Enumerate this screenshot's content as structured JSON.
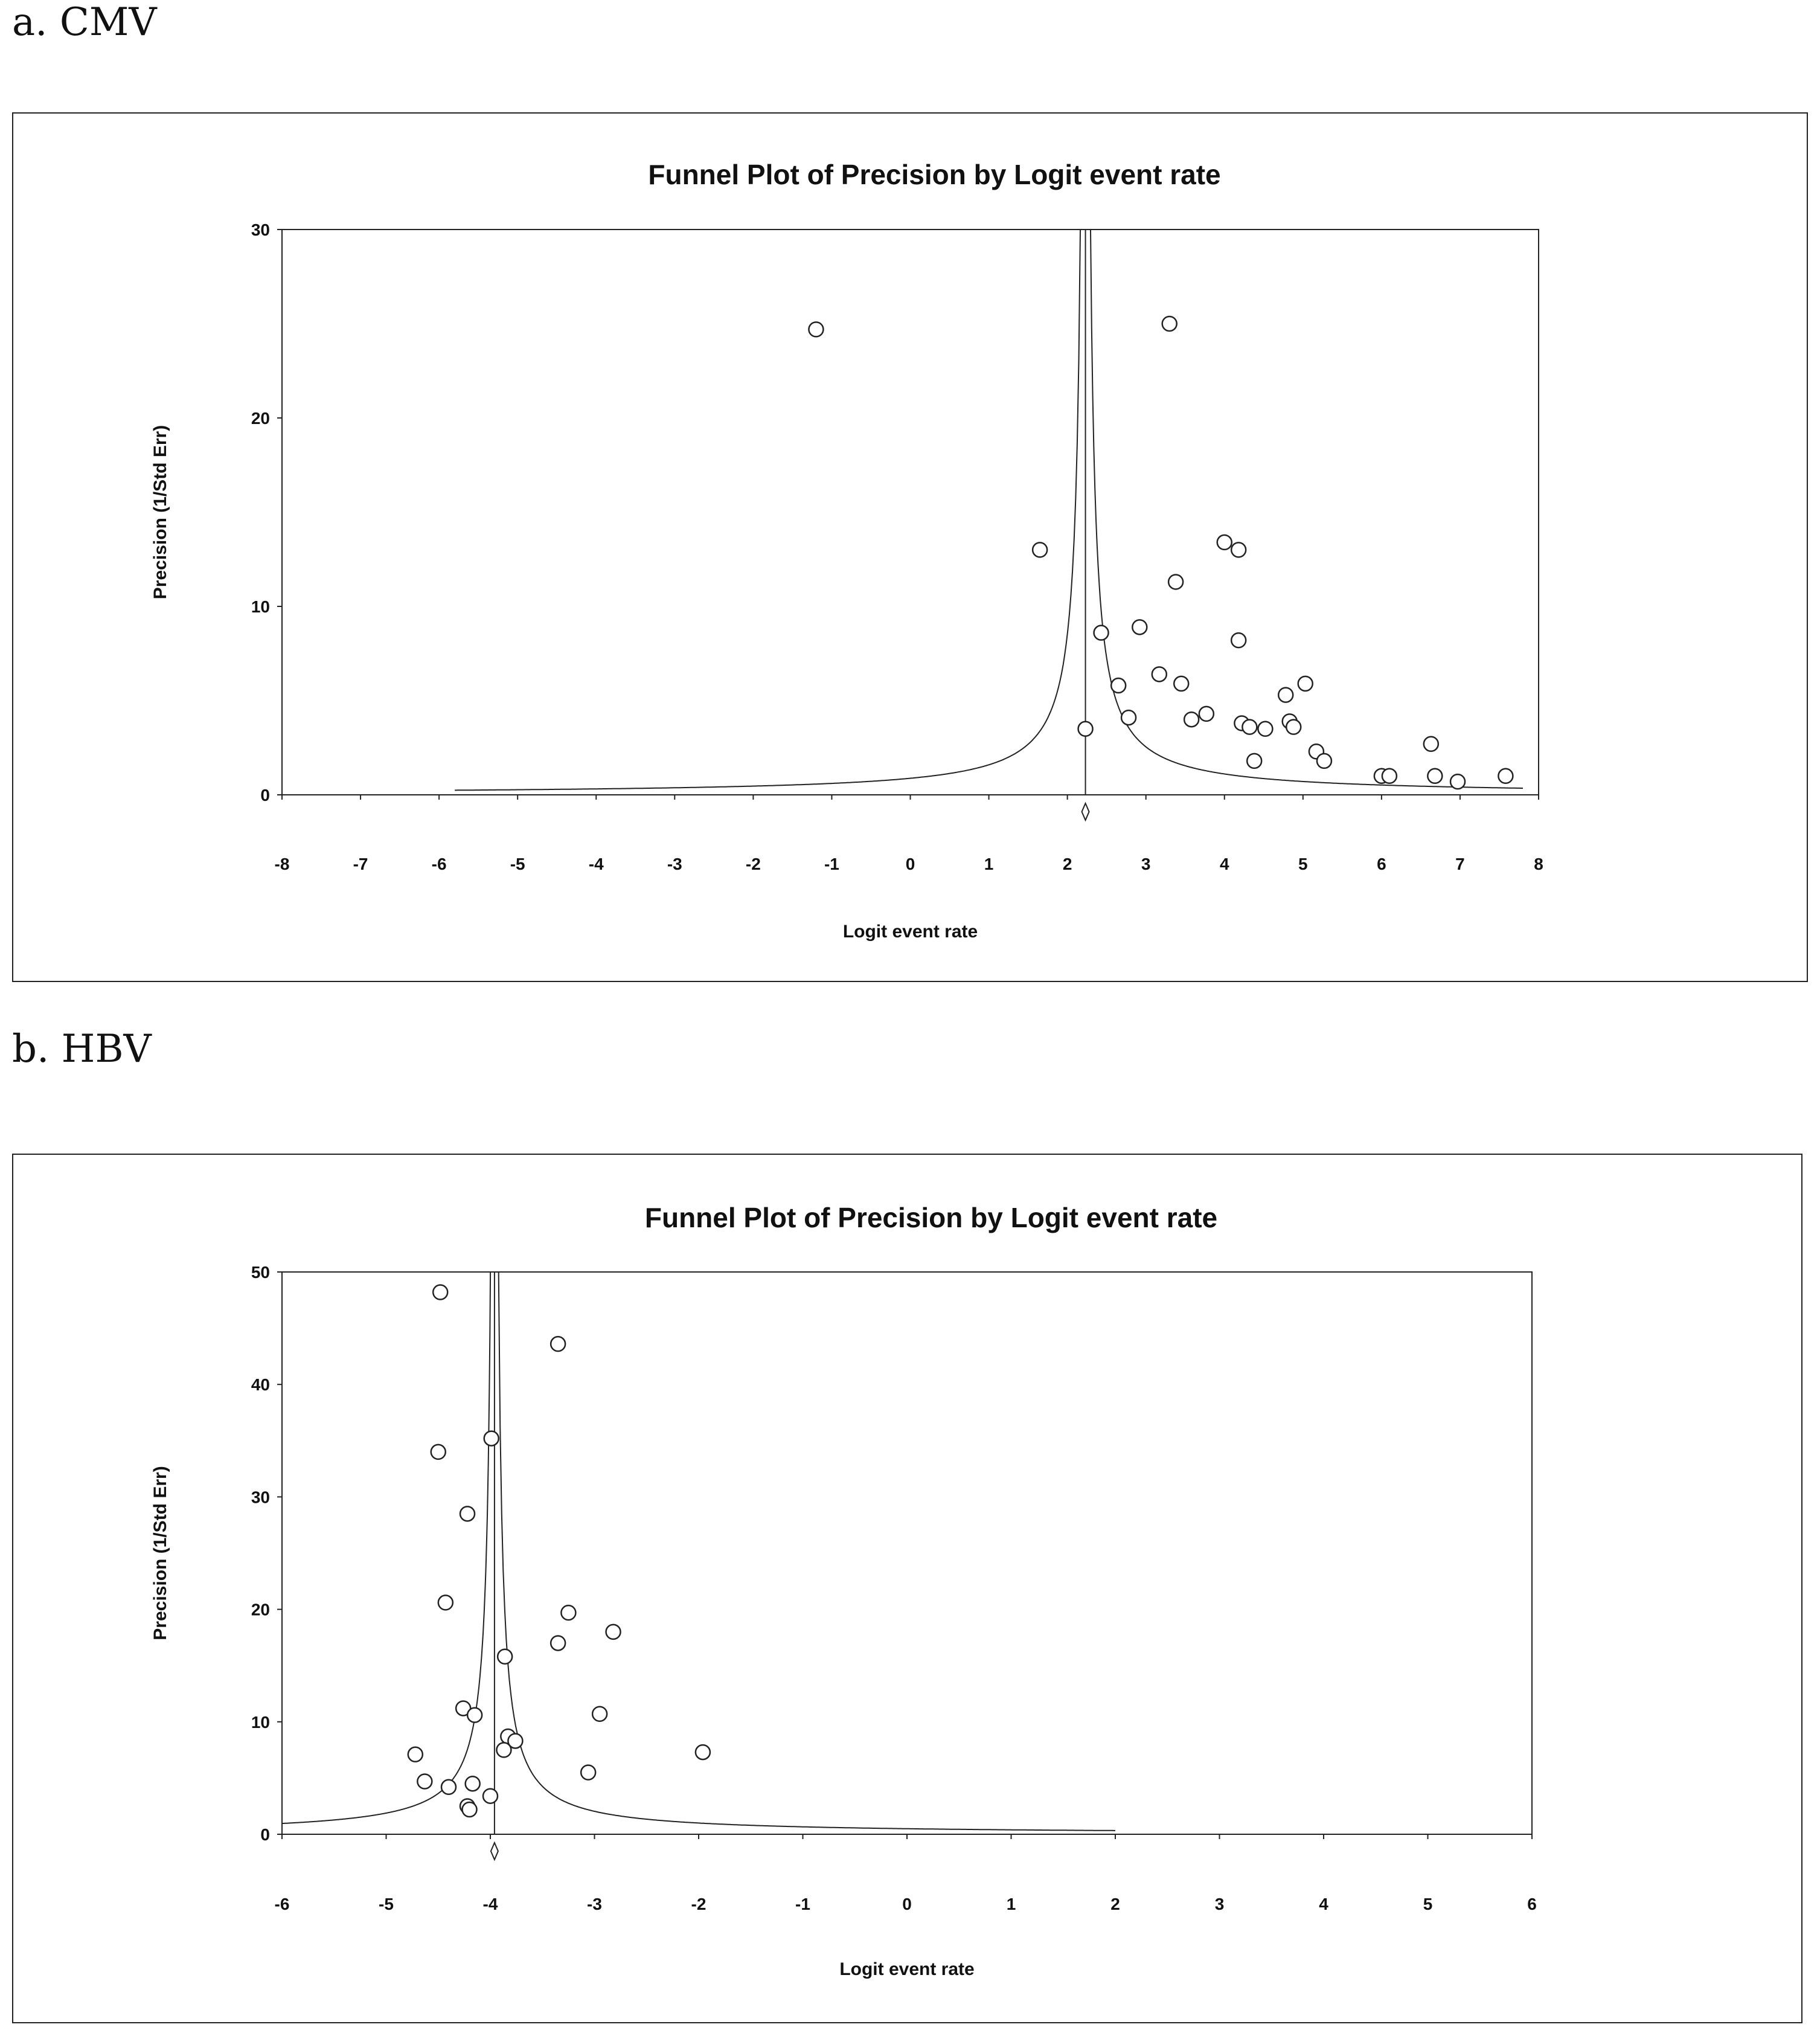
{
  "panels": [
    {
      "label": "a. CMV"
    },
    {
      "label": "b. HBV"
    }
  ],
  "chart_data": [
    {
      "type": "scatter",
      "subtype": "funnel",
      "title": "Funnel Plot of Precision by Logit event rate",
      "xlabel": "Logit event rate",
      "ylabel": "Precision (1/Std Err)",
      "xlim": [
        -8,
        8
      ],
      "ylim": [
        0,
        30
      ],
      "xticks": [
        -8,
        -7,
        -6,
        -5,
        -4,
        -3,
        -2,
        -1,
        0,
        1,
        2,
        3,
        4,
        5,
        6,
        7,
        8
      ],
      "yticks": [
        0,
        10,
        20,
        30
      ],
      "pooled_estimate": 2.23,
      "funnel_x_range": [
        -5.8,
        7.8
      ],
      "points": [
        [
          -1.2,
          24.7
        ],
        [
          3.3,
          25.0
        ],
        [
          1.65,
          13.0
        ],
        [
          4.0,
          13.4
        ],
        [
          4.18,
          13.0
        ],
        [
          3.38,
          11.3
        ],
        [
          2.92,
          8.9
        ],
        [
          2.43,
          8.6
        ],
        [
          4.18,
          8.2
        ],
        [
          3.17,
          6.4
        ],
        [
          2.65,
          5.8
        ],
        [
          3.45,
          5.9
        ],
        [
          5.03,
          5.9
        ],
        [
          4.78,
          5.3
        ],
        [
          2.78,
          4.1
        ],
        [
          3.58,
          4.0
        ],
        [
          3.77,
          4.3
        ],
        [
          4.22,
          3.8
        ],
        [
          4.32,
          3.6
        ],
        [
          4.52,
          3.5
        ],
        [
          4.83,
          3.9
        ],
        [
          4.88,
          3.6
        ],
        [
          2.23,
          3.5
        ],
        [
          5.17,
          2.3
        ],
        [
          5.27,
          1.8
        ],
        [
          4.38,
          1.8
        ],
        [
          6.0,
          1.0
        ],
        [
          6.1,
          1.0
        ],
        [
          6.63,
          2.7
        ],
        [
          6.68,
          1.0
        ],
        [
          6.97,
          0.7
        ],
        [
          7.58,
          1.0
        ]
      ]
    },
    {
      "type": "scatter",
      "subtype": "funnel",
      "title": "Funnel Plot of Precision by Logit event rate",
      "xlabel": "Logit event rate",
      "ylabel": "Precision (1/Std Err)",
      "xlim": [
        -6,
        6
      ],
      "ylim": [
        0,
        50
      ],
      "xticks": [
        -6,
        -5,
        -4,
        -3,
        -2,
        -1,
        0,
        1,
        2,
        3,
        4,
        5,
        6
      ],
      "yticks": [
        0,
        10,
        20,
        30,
        40,
        50
      ],
      "pooled_estimate": -3.96,
      "funnel_x_range": [
        -6,
        2.0
      ],
      "points": [
        [
          -4.48,
          48.2
        ],
        [
          -3.35,
          43.6
        ],
        [
          -4.5,
          34.0
        ],
        [
          -3.99,
          35.2
        ],
        [
          -4.22,
          28.5
        ],
        [
          -4.43,
          20.6
        ],
        [
          -3.25,
          19.7
        ],
        [
          -2.82,
          18.0
        ],
        [
          -3.35,
          17.0
        ],
        [
          -3.86,
          15.8
        ],
        [
          -4.26,
          11.2
        ],
        [
          -4.15,
          10.6
        ],
        [
          -2.95,
          10.7
        ],
        [
          -3.83,
          8.7
        ],
        [
          -3.76,
          8.3
        ],
        [
          -3.87,
          7.5
        ],
        [
          -4.72,
          7.1
        ],
        [
          -1.96,
          7.3
        ],
        [
          -3.06,
          5.5
        ],
        [
          -4.63,
          4.7
        ],
        [
          -4.17,
          4.5
        ],
        [
          -4.4,
          4.2
        ],
        [
          -4.0,
          3.4
        ],
        [
          -4.22,
          2.5
        ],
        [
          -4.2,
          2.2
        ]
      ]
    }
  ]
}
